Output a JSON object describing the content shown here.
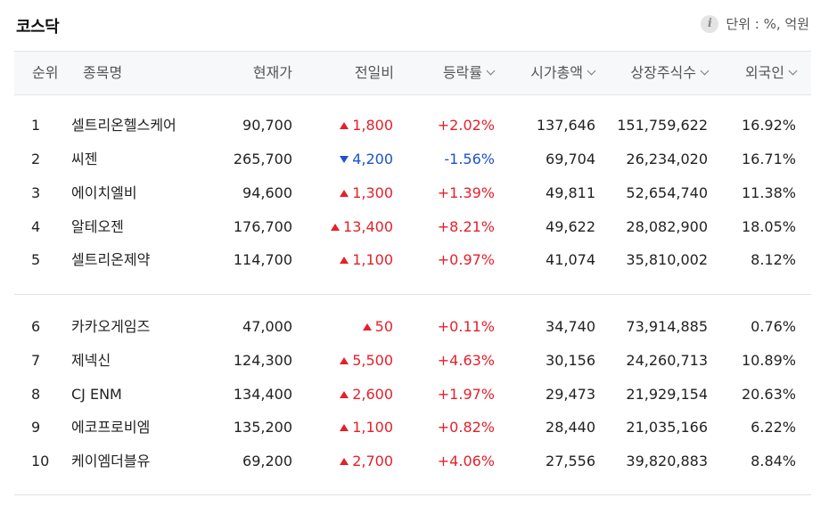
{
  "section": {
    "title": "코스닥",
    "unit_label": "단위 : %, 억원",
    "info_icon": "info-icon"
  },
  "columns": {
    "rank": "순위",
    "name": "종목명",
    "price": "현재가",
    "change": "전일비",
    "rate": "등락률",
    "market_cap": "시가총액",
    "shares": "상장주식수",
    "foreign": "외국인"
  },
  "colors": {
    "up": "#e4202b",
    "down": "#1b53c8"
  },
  "rows": [
    {
      "rank": "1",
      "name": "셀트리온헬스케어",
      "price": "90,700",
      "direction": "up",
      "change": "1,800",
      "rate": "+2.02%",
      "market_cap": "137,646",
      "shares": "151,759,622",
      "foreign": "16.92%"
    },
    {
      "rank": "2",
      "name": "씨젠",
      "price": "265,700",
      "direction": "down",
      "change": "4,200",
      "rate": "-1.56%",
      "market_cap": "69,704",
      "shares": "26,234,020",
      "foreign": "16.71%"
    },
    {
      "rank": "3",
      "name": "에이치엘비",
      "price": "94,600",
      "direction": "up",
      "change": "1,300",
      "rate": "+1.39%",
      "market_cap": "49,811",
      "shares": "52,654,740",
      "foreign": "11.38%"
    },
    {
      "rank": "4",
      "name": "알테오젠",
      "price": "176,700",
      "direction": "up",
      "change": "13,400",
      "rate": "+8.21%",
      "market_cap": "49,622",
      "shares": "28,082,900",
      "foreign": "18.05%"
    },
    {
      "rank": "5",
      "name": "셀트리온제약",
      "price": "114,700",
      "direction": "up",
      "change": "1,100",
      "rate": "+0.97%",
      "market_cap": "41,074",
      "shares": "35,810,002",
      "foreign": "8.12%"
    },
    {
      "rank": "6",
      "name": "카카오게임즈",
      "price": "47,000",
      "direction": "up",
      "change": "50",
      "rate": "+0.11%",
      "market_cap": "34,740",
      "shares": "73,914,885",
      "foreign": "0.76%"
    },
    {
      "rank": "7",
      "name": "제넥신",
      "price": "124,300",
      "direction": "up",
      "change": "5,500",
      "rate": "+4.63%",
      "market_cap": "30,156",
      "shares": "24,260,713",
      "foreign": "10.89%"
    },
    {
      "rank": "8",
      "name": "CJ ENM",
      "price": "134,400",
      "direction": "up",
      "change": "2,600",
      "rate": "+1.97%",
      "market_cap": "29,473",
      "shares": "21,929,154",
      "foreign": "20.63%"
    },
    {
      "rank": "9",
      "name": "에코프로비엠",
      "price": "135,200",
      "direction": "up",
      "change": "1,100",
      "rate": "+0.82%",
      "market_cap": "28,440",
      "shares": "21,035,166",
      "foreign": "6.22%"
    },
    {
      "rank": "10",
      "name": "케이엠더블유",
      "price": "69,200",
      "direction": "up",
      "change": "2,700",
      "rate": "+4.06%",
      "market_cap": "27,556",
      "shares": "39,820,883",
      "foreign": "8.84%"
    }
  ]
}
